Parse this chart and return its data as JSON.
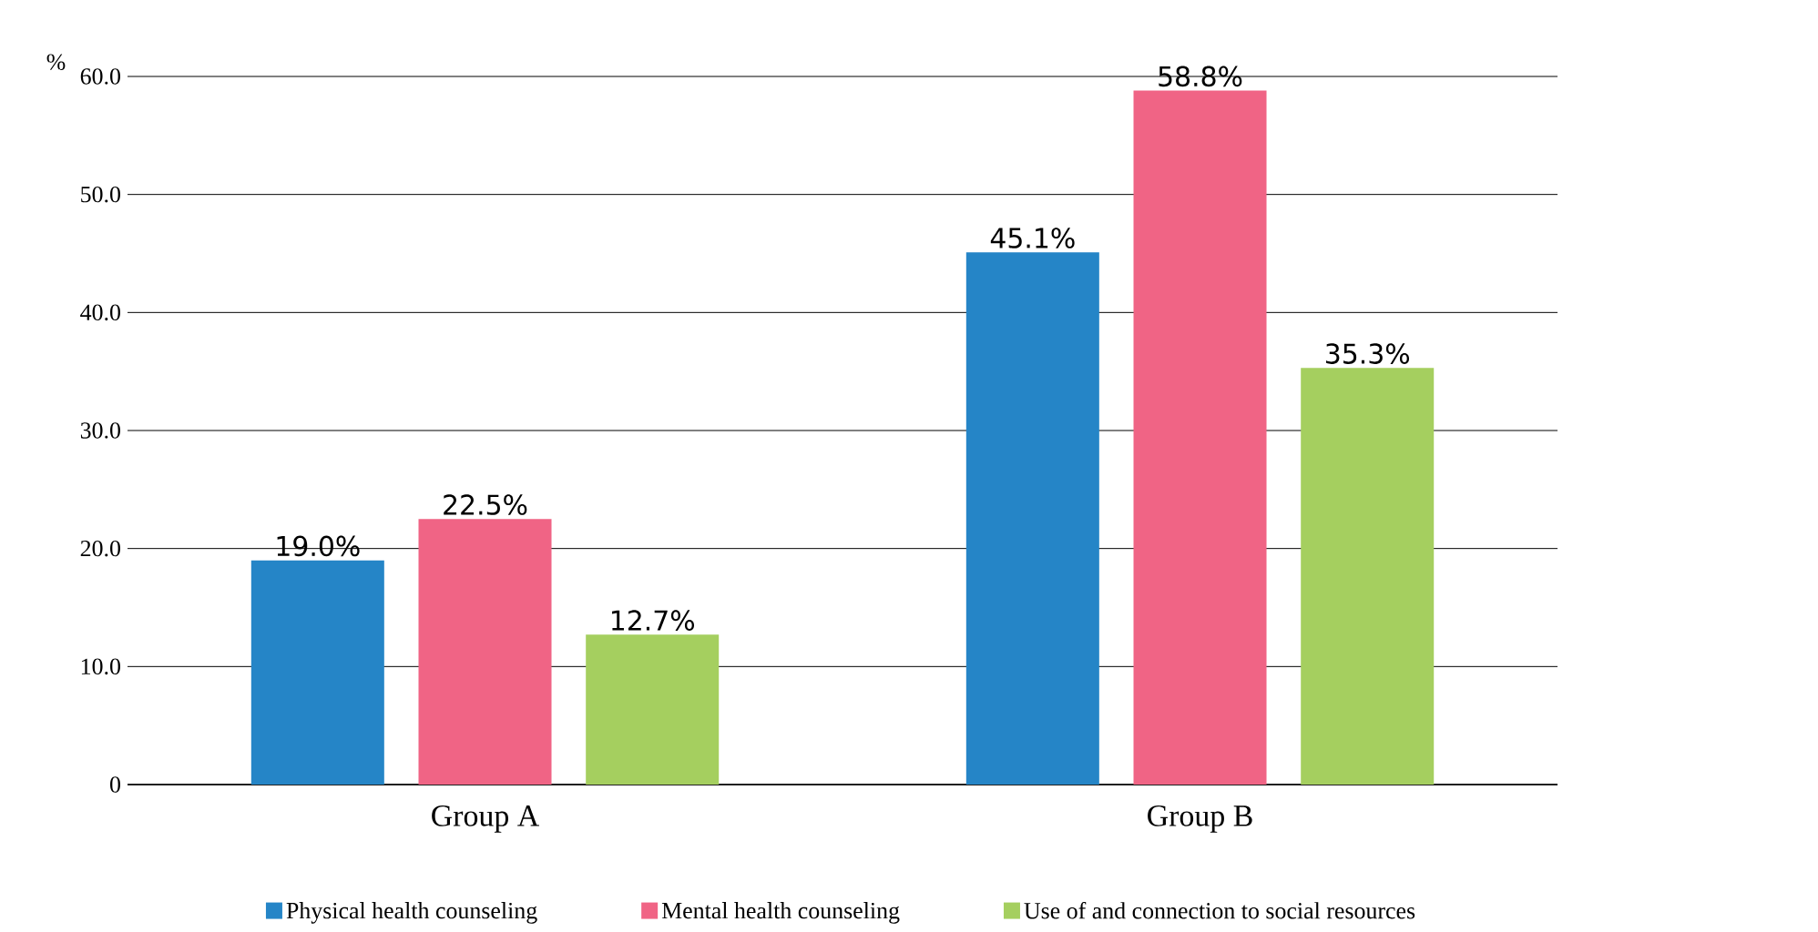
{
  "chart_data": {
    "type": "bar",
    "ylabel": "%",
    "categories": [
      "Group A",
      "Group B"
    ],
    "series": [
      {
        "name": "Physical health counseling",
        "color": "#2585c7",
        "values": [
          19.0,
          45.1
        ],
        "value_labels": [
          "19.0%",
          "45.1%"
        ]
      },
      {
        "name": "Mental health counseling",
        "color": "#f06485",
        "values": [
          22.5,
          58.8
        ],
        "value_labels": [
          "22.5%",
          "58.8%"
        ]
      },
      {
        "name": "Use of and connection to social resources",
        "color": "#a5cf5f",
        "values": [
          12.7,
          35.3
        ],
        "value_labels": [
          "12.7%",
          "35.3%"
        ]
      }
    ],
    "ylim": [
      0,
      60
    ],
    "yticks": [
      0,
      {
        "value": 10,
        "label": "10.0"
      },
      {
        "value": 20,
        "label": "20.0"
      },
      {
        "value": 30,
        "label": "30.0"
      },
      {
        "value": 40,
        "label": "40.0"
      },
      {
        "value": 50,
        "label": "50.0"
      },
      {
        "value": 60,
        "label": "60.0"
      }
    ],
    "grid": "y",
    "legend": "bottom"
  }
}
